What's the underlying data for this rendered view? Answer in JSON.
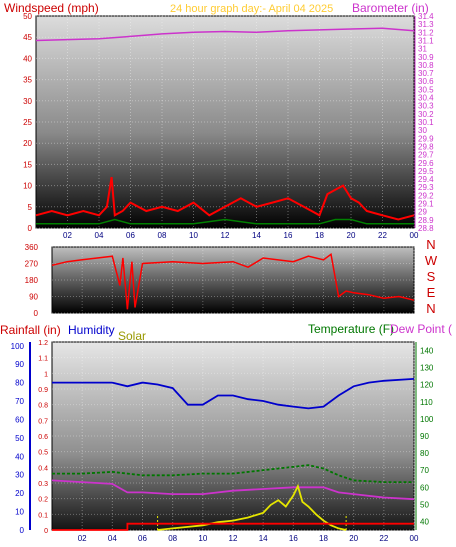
{
  "header": {
    "windspeed_label": "Windspeed (mph)",
    "title": "24 hour graph day:- April 04 2025",
    "barometer_label": "Barometer (in)"
  },
  "lower_header": {
    "rainfall_label": "Rainfall (in)",
    "humidity_label": "Humidity",
    "solar_label": "Solar",
    "temperature_label": "Temperature (F)",
    "dewpoint_label": "Dew Point ("
  },
  "colors": {
    "wind": "#ff0000",
    "gust": "#ff0000",
    "wind_avg": "#008000",
    "wind_low": "#0000ff",
    "barometer": "#cc33cc",
    "direction": "#ff0000",
    "humidity": "#0000cc",
    "temperature": "#007700",
    "dewpoint": "#cc33cc",
    "solar": "#e6e600",
    "rain": "#ff0000",
    "left_axis": "#cc0000",
    "hum_axis": "#0000cc",
    "solar_label": "#999900",
    "temp_axis": "#007700"
  },
  "chart_data": [
    {
      "type": "line",
      "name_key": "wind",
      "x_ticks": [
        "02",
        "04",
        "06",
        "08",
        "10",
        "12",
        "14",
        "16",
        "18",
        "20",
        "22",
        "00"
      ],
      "y_left_ticks": [
        "0",
        "5",
        "10",
        "15",
        "20",
        "25",
        "30",
        "35",
        "40",
        "45",
        "50"
      ],
      "y_left_range": [
        0,
        50
      ],
      "y_right_ticks": [
        "28.8",
        "28.9",
        "29",
        "29.1",
        "29.2",
        "29.3",
        "29.4",
        "29.5",
        "29.6",
        "29.7",
        "29.8",
        "29.9",
        "30",
        "30.1",
        "30.2",
        "30.3",
        "30.4",
        "30.5",
        "30.6",
        "30.7",
        "30.8",
        "30.9",
        "31",
        "31.1",
        "31.2",
        "31.3",
        "31.4"
      ],
      "y_right_range": [
        28.8,
        31.4
      ],
      "series": [
        {
          "key": "wind_gust",
          "x": [
            0,
            1,
            2,
            3,
            4,
            4.5,
            4.8,
            5,
            5.5,
            6,
            7,
            8,
            9,
            10,
            11,
            12,
            13,
            14,
            15,
            16,
            17,
            18,
            18.5,
            19,
            19.5,
            20,
            20.5,
            21,
            22,
            23,
            24
          ],
          "values": [
            3,
            4,
            3,
            4,
            3,
            5,
            12,
            3,
            4,
            6,
            4,
            5,
            4,
            6,
            3,
            5,
            7,
            5,
            6,
            7,
            5,
            3,
            8,
            9,
            10,
            7,
            6,
            4,
            3,
            2,
            3
          ]
        },
        {
          "key": "wind_avg",
          "x": [
            0,
            2,
            4,
            5,
            6,
            8,
            10,
            12,
            14,
            16,
            18,
            19,
            20,
            21,
            22,
            24
          ],
          "values": [
            1,
            1,
            1,
            2,
            1,
            1,
            1,
            2,
            1,
            1,
            1,
            2,
            2,
            1,
            1,
            1
          ]
        },
        {
          "key": "barometer",
          "x": [
            0,
            2,
            4,
            6,
            8,
            10,
            12,
            14,
            16,
            18,
            20,
            22,
            24
          ],
          "values": [
            31.1,
            31.11,
            31.12,
            31.15,
            31.18,
            31.2,
            31.21,
            31.2,
            31.22,
            31.23,
            31.24,
            31.25,
            31.22
          ]
        }
      ]
    },
    {
      "type": "line",
      "name_key": "direction",
      "x_ticks": [
        "02",
        "04",
        "06",
        "08",
        "10",
        "12",
        "14",
        "16",
        "18",
        "20",
        "22",
        "00"
      ],
      "y_ticks": [
        "0",
        "90",
        "180",
        "270",
        "360"
      ],
      "y_range": [
        0,
        360
      ],
      "compass_labels": [
        "N",
        "W",
        "S",
        "E",
        "N"
      ],
      "series": [
        {
          "key": "direction",
          "x": [
            0,
            1,
            2,
            3,
            4,
            4.5,
            4.7,
            5,
            5.3,
            5.5,
            6,
            8,
            10,
            12,
            13,
            14,
            16,
            17,
            18,
            18.5,
            19,
            19.5,
            20,
            21,
            22,
            23,
            24
          ],
          "values": [
            260,
            280,
            290,
            300,
            310,
            150,
            300,
            20,
            280,
            30,
            270,
            280,
            270,
            280,
            250,
            300,
            280,
            310,
            290,
            320,
            90,
            120,
            110,
            100,
            80,
            90,
            70
          ]
        }
      ]
    },
    {
      "type": "line",
      "name_key": "env",
      "x_ticks": [
        "02",
        "04",
        "06",
        "08",
        "10",
        "12",
        "14",
        "16",
        "18",
        "20",
        "22",
        "00"
      ],
      "y_rain_ticks": [
        "0",
        "0.1",
        "0.2",
        "0.3",
        "0.4",
        "0.5",
        "0.6",
        "0.7",
        "0.8",
        "0.9",
        "1",
        "1.1",
        "1.2"
      ],
      "y_rain_range": [
        0,
        1.2
      ],
      "y_hum_ticks": [
        "0",
        "10",
        "20",
        "30",
        "40",
        "50",
        "60",
        "70",
        "80",
        "90",
        "100"
      ],
      "y_hum_range": [
        0,
        100
      ],
      "y_temp_ticks": [
        "40",
        "50",
        "60",
        "70",
        "80",
        "90",
        "100",
        "110",
        "120",
        "130",
        "140"
      ],
      "y_temp_range": [
        35,
        145
      ],
      "series": [
        {
          "key": "humidity",
          "x": [
            0,
            2,
            4,
            5,
            6,
            7,
            8,
            9,
            10,
            11,
            12,
            13,
            14,
            15,
            16,
            17,
            18,
            19,
            20,
            21,
            22,
            24
          ],
          "values": [
            80,
            80,
            80,
            78,
            80,
            79,
            77,
            68,
            68,
            73,
            73,
            71,
            70,
            68,
            67,
            66,
            67,
            73,
            78,
            80,
            81,
            82
          ]
        },
        {
          "key": "temperature",
          "x": [
            0,
            2,
            4,
            6,
            8,
            10,
            12,
            14,
            16,
            17,
            18,
            19,
            20,
            22,
            24
          ],
          "values": [
            68,
            68,
            69,
            67,
            67,
            68,
            68,
            70,
            72,
            73,
            71,
            67,
            64,
            63,
            63
          ]
        },
        {
          "key": "dewpoint",
          "x": [
            0,
            2,
            4,
            5,
            6,
            8,
            10,
            12,
            14,
            16,
            17,
            18,
            19,
            20,
            22,
            24
          ],
          "values": [
            64,
            63,
            62,
            57,
            57,
            56,
            56,
            58,
            59,
            60,
            60,
            60,
            57,
            56,
            54,
            53
          ]
        },
        {
          "key": "solar",
          "x": [
            7,
            8,
            9,
            10,
            11,
            12,
            13,
            14,
            14.5,
            15,
            15.5,
            16,
            16.3,
            16.6,
            17,
            17.5,
            18,
            18.5,
            19,
            19.5
          ],
          "values": [
            0,
            0.01,
            0.02,
            0.03,
            0.05,
            0.06,
            0.08,
            0.11,
            0.16,
            0.19,
            0.15,
            0.22,
            0.28,
            0.18,
            0.15,
            0.1,
            0.06,
            0.03,
            0.01,
            0
          ]
        },
        {
          "key": "rain",
          "x": [
            0,
            5,
            5,
            24
          ],
          "values": [
            0,
            0,
            0.04,
            0.04
          ]
        }
      ]
    }
  ]
}
